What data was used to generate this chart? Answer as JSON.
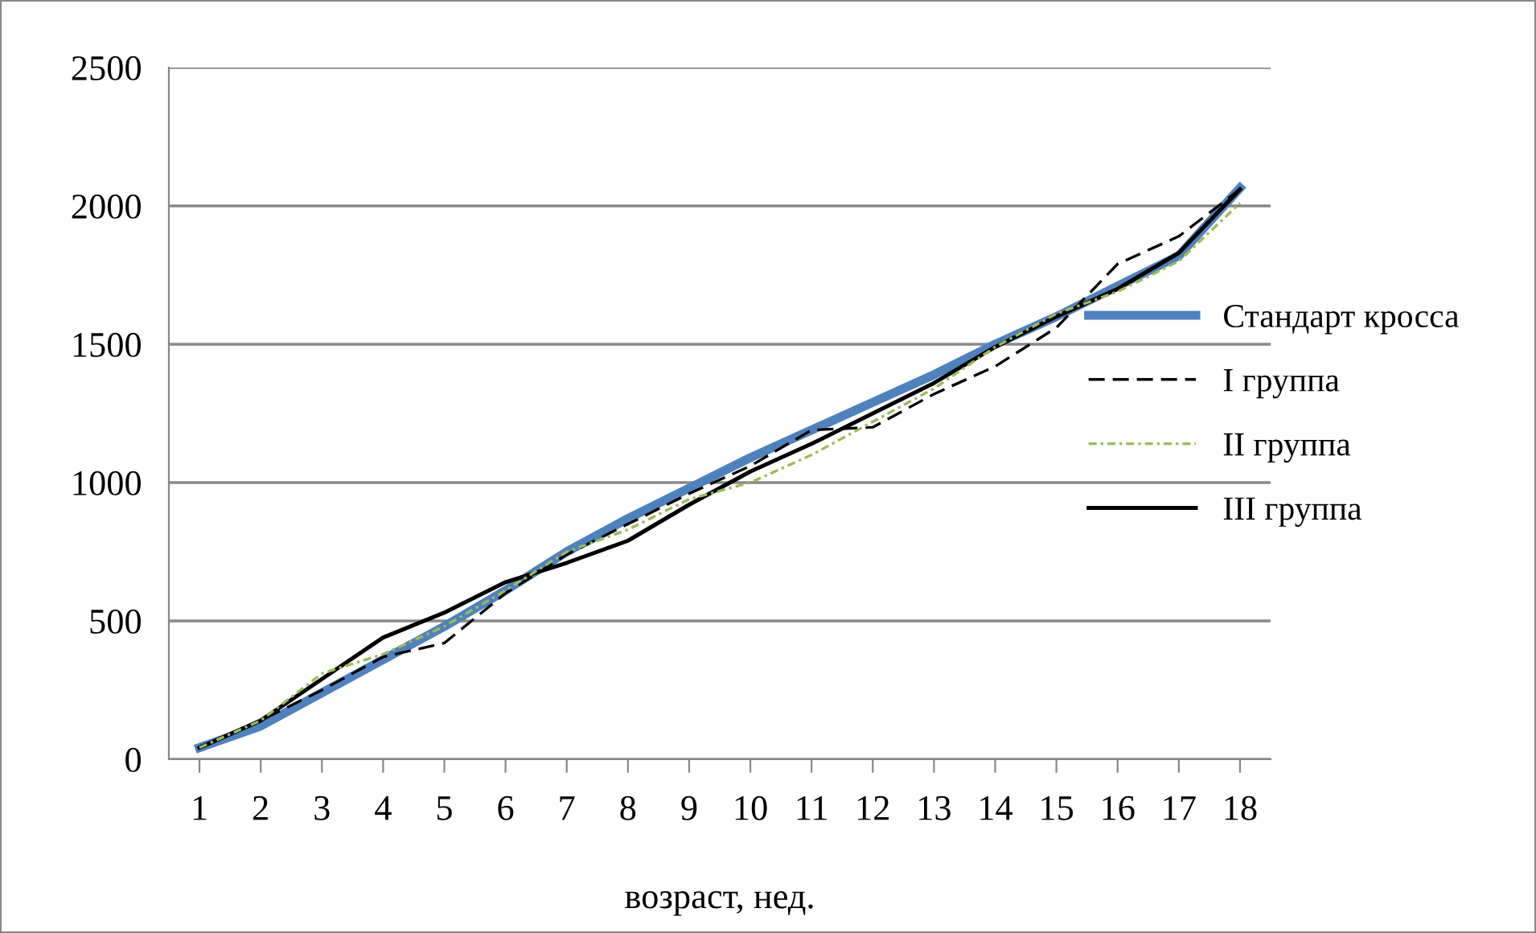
{
  "chart_data": {
    "type": "line",
    "xlabel": "возраст, нед.",
    "categories": [
      "1",
      "2",
      "3",
      "4",
      "5",
      "6",
      "7",
      "8",
      "9",
      "10",
      "11",
      "12",
      "13",
      "14",
      "15",
      "16",
      "17",
      "18"
    ],
    "series": [
      {
        "name": "Стандарт кросса",
        "color": "#4f81bd",
        "values": [
          42,
          120,
          240,
          360,
          480,
          610,
          750,
          870,
          980,
          1090,
          1190,
          1290,
          1390,
          1500,
          1600,
          1710,
          1820,
          2065
        ]
      },
      {
        "name": "I группа",
        "color": "#000000",
        "line_style": "dashed",
        "values": [
          42,
          140,
          250,
          370,
          420,
          600,
          740,
          850,
          960,
          1060,
          1190,
          1200,
          1320,
          1420,
          1560,
          1790,
          1890,
          2060
        ]
      },
      {
        "name": "II группа",
        "color": "#9bbb59",
        "line_style": "dashdot",
        "values": [
          42,
          140,
          310,
          380,
          480,
          610,
          750,
          830,
          940,
          1000,
          1100,
          1220,
          1340,
          1490,
          1610,
          1690,
          1800,
          2010
        ]
      },
      {
        "name": "III группа",
        "color": "#000000",
        "line_style": "solid",
        "values": [
          42,
          140,
          290,
          440,
          530,
          640,
          710,
          790,
          920,
          1040,
          1140,
          1250,
          1360,
          1490,
          1600,
          1700,
          1830,
          2060
        ]
      }
    ],
    "ylim": [
      0,
      2500
    ],
    "yticks": [
      0,
      500,
      1000,
      1500,
      2000,
      2500
    ],
    "grid": "y",
    "legend": "right",
    "marker": "none"
  }
}
